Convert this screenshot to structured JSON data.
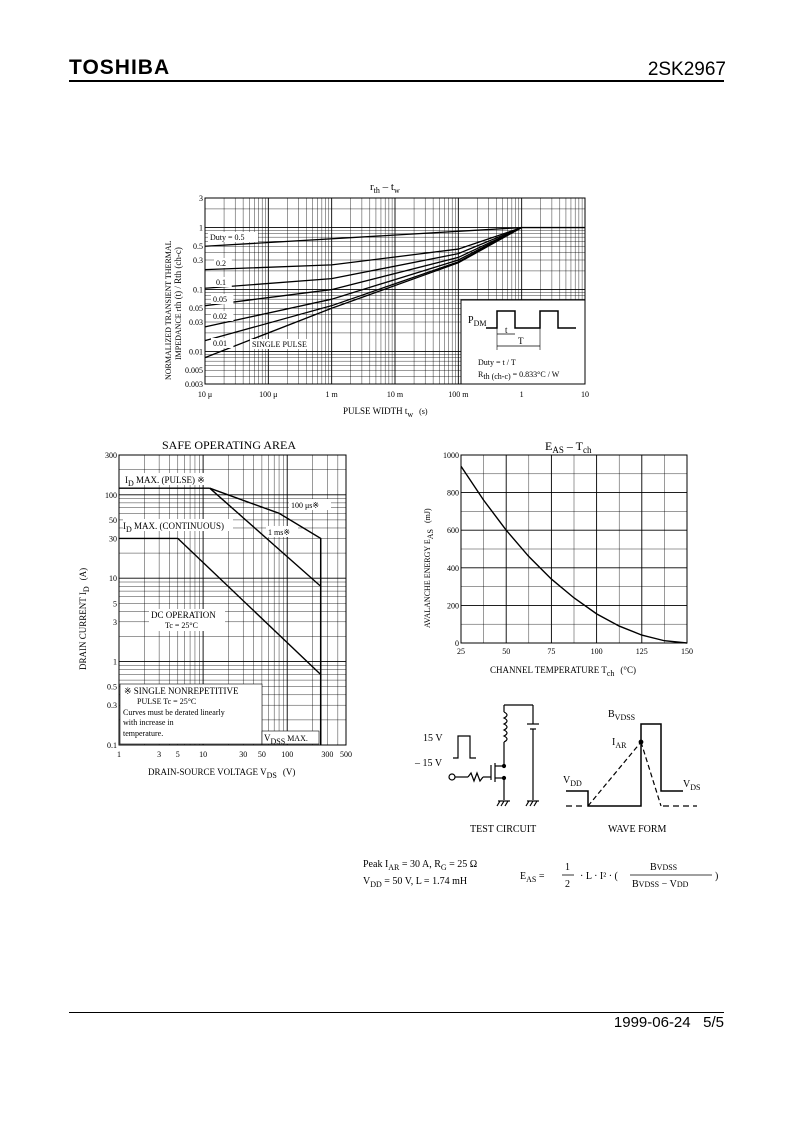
{
  "header": {
    "brand": "TOSHIBA",
    "part": "2SK2967"
  },
  "footer": {
    "date": "1999-06-24",
    "page": "5/5"
  },
  "rth": {
    "title_main": "r",
    "title_sub": "th",
    "title_mid": " – t",
    "title_sub2": "w",
    "ylabel1": "NORMALIZED TRANSIENT THERMAL",
    "ylabel2": "IMPEDANCE   r",
    "ylabel3": "th (t) / R",
    "ylabel4": "th (ch-c)",
    "yticks": [
      "3",
      "1",
      "0.5",
      "0.3",
      "0.1",
      "0.05",
      "0.03",
      "0.01",
      "0.005",
      "0.003"
    ],
    "xticks": [
      "10 μ",
      "100 μ",
      "1 m",
      "10 m",
      "100 m",
      "1",
      "10"
    ],
    "xlabel": "PULSE WIDTH   t",
    "xlabel_sub": "w",
    "xlabel_unit": "(s)",
    "duty_labels": [
      "Duty = 0.5",
      "0.2",
      "0.1",
      "0.05",
      "0.02",
      "0.01",
      "SINGLE PULSE"
    ],
    "inset": {
      "pdm": "P",
      "pdm_sub": "DM",
      "t": "t",
      "T": "T",
      "duty": "Duty = t / T",
      "rth": "R",
      "rth_sub": "th (ch-c)",
      "rth_val": " = 0.833°C / W"
    }
  },
  "soa": {
    "title": "SAFE OPERATING AREA",
    "yticks": [
      "300",
      "100",
      "50",
      "30",
      "10",
      "5",
      "3",
      "1",
      "0.5",
      "0.3",
      "0.1"
    ],
    "xticks": [
      "1",
      "3",
      "5",
      "10",
      "30",
      "50",
      "100",
      "300",
      "500"
    ],
    "xlabel": "DRAIN-SOURCE VOLTAGE   V",
    "xlabel_sub": "DS",
    "xlabel_unit": "(V)",
    "ylabel": "DRAIN CURRENT   I",
    "ylabel_sub": "D",
    "ylabel_unit": "(A)",
    "id_pulse": "I",
    "id_pulse_sub": "D",
    "id_pulse_txt": " MAX. (PULSE) ※",
    "id_cont": "I",
    "id_cont_sub": "D",
    "id_cont_txt": " MAX. (CONTINUOUS)",
    "l100us": "100 μs※",
    "l1ms": "1 ms※",
    "dc1": "DC OPERATION",
    "dc2": "Tc = 25°C",
    "note1": "※  SINGLE NONREPETITIVE",
    "note2": "PULSE   Tc = 25°C",
    "note3": "Curves must be derated linearly",
    "note4": "with increase in",
    "note5": "temperature.",
    "vdss": "V",
    "vdss_sub": "DSS",
    "vdss_txt": "  MAX."
  },
  "eas": {
    "title": "E",
    "title_sub": "AS",
    "title_mid": " – T",
    "title_sub2": "ch",
    "yticks": [
      "1000",
      "800",
      "600",
      "400",
      "200",
      "0"
    ],
    "xticks": [
      "25",
      "50",
      "75",
      "100",
      "125",
      "150"
    ],
    "xlabel": "CHANNEL TEMPERATURE   T",
    "xlabel_sub": "ch",
    "xlabel_unit": "(°C)",
    "ylabel": "AVALANCHE ENERGY   E",
    "ylabel_sub": "AS",
    "ylabel_unit": "(mJ)"
  },
  "circuit": {
    "v15p": "15 V",
    "v15n": "– 15 V",
    "test_circuit": "TEST CIRCUIT",
    "wave_form": "WAVE FORM",
    "bvdss": "B",
    "bvdss_sub": "VDSS",
    "iar": "I",
    "iar_sub": "AR",
    "vdd": "V",
    "vdd_sub": "DD",
    "vds": "V",
    "vds_sub": "DS"
  },
  "formula": {
    "line1a": "Peak  I",
    "line1a_sub": "AR",
    "line1b": " = 30 A, R",
    "line1b_sub": "G",
    "line1c": " = 25 Ω",
    "line2a": "V",
    "line2a_sub": "DD",
    "line2b": " = 50 V, L = 1.74 mH",
    "eas": "E",
    "eas_sub": "AS",
    "eq": " =",
    "num1": "1",
    "den1": "2",
    "mid": "· L · I² · (",
    "num2": "B",
    "num2_sub": "VDSS",
    "den2a": "B",
    "den2a_sub": "VDSS",
    "den2b": " − V",
    "den2b_sub": "DD",
    "close": ")"
  },
  "chart_data": [
    {
      "type": "line",
      "title": "rth – tw",
      "xlabel": "PULSE WIDTH tw (s)",
      "ylabel": "NORMALIZED TRANSIENT THERMAL IMPEDANCE rth(t)/Rth(ch-c)",
      "xscale": "log",
      "yscale": "log",
      "xlim": [
        1e-05,
        10
      ],
      "ylim": [
        0.003,
        3
      ],
      "series": [
        {
          "name": "Duty = 0.5",
          "x": [
            1e-05,
            1,
            10
          ],
          "y": [
            0.5,
            1,
            1
          ]
        },
        {
          "name": "0.2",
          "x": [
            1e-05,
            0.001,
            0.1,
            1
          ],
          "y": [
            0.21,
            0.25,
            0.45,
            1
          ]
        },
        {
          "name": "0.1",
          "x": [
            1e-05,
            0.001,
            0.1,
            1
          ],
          "y": [
            0.105,
            0.15,
            0.38,
            1
          ]
        },
        {
          "name": "0.05",
          "x": [
            1e-05,
            0.001,
            0.1,
            1
          ],
          "y": [
            0.055,
            0.1,
            0.33,
            1
          ]
        },
        {
          "name": "0.02",
          "x": [
            1e-05,
            0.001,
            0.1,
            1
          ],
          "y": [
            0.025,
            0.07,
            0.3,
            1
          ]
        },
        {
          "name": "0.01",
          "x": [
            1e-05,
            0.001,
            0.1,
            1
          ],
          "y": [
            0.015,
            0.055,
            0.28,
            1
          ]
        },
        {
          "name": "SINGLE PULSE",
          "x": [
            1e-05,
            0.001,
            0.1,
            1
          ],
          "y": [
            0.008,
            0.05,
            0.27,
            1
          ]
        }
      ]
    },
    {
      "type": "line",
      "title": "SAFE OPERATING AREA",
      "xlabel": "DRAIN-SOURCE VOLTAGE VDS (V)",
      "ylabel": "DRAIN CURRENT ID (A)",
      "xscale": "log",
      "yscale": "log",
      "xlim": [
        1,
        500
      ],
      "ylim": [
        0.1,
        300
      ],
      "series": [
        {
          "name": "ID MAX. (PULSE)",
          "x": [
            1,
            12
          ],
          "y": [
            120,
            120
          ]
        },
        {
          "name": "100 μs",
          "x": [
            12,
            80,
            250,
            250
          ],
          "y": [
            120,
            60,
            30,
            0.1
          ]
        },
        {
          "name": "1 ms",
          "x": [
            12,
            250,
            250
          ],
          "y": [
            120,
            8,
            0.1
          ]
        },
        {
          "name": "ID MAX. (CONTINUOUS)",
          "x": [
            1,
            5
          ],
          "y": [
            30,
            30
          ]
        },
        {
          "name": "DC OPERATION Tc = 25°C",
          "x": [
            5,
            250
          ],
          "y": [
            30,
            0.7
          ]
        },
        {
          "name": "VDSS MAX.",
          "x": [
            250,
            250
          ],
          "y": [
            0.1,
            30
          ]
        }
      ]
    },
    {
      "type": "line",
      "title": "EAS – Tch",
      "xlabel": "CHANNEL TEMPERATURE Tch (°C)",
      "ylabel": "AVALANCHE ENERGY EAS (mJ)",
      "xlim": [
        25,
        150
      ],
      "ylim": [
        0,
        1000
      ],
      "series": [
        {
          "name": "EAS",
          "x": [
            25,
            37.5,
            50,
            62.5,
            75,
            87.5,
            100,
            112.5,
            125,
            137.5,
            150
          ],
          "y": [
            940,
            760,
            600,
            460,
            340,
            240,
            155,
            90,
            42,
            12,
            0
          ]
        }
      ]
    }
  ]
}
